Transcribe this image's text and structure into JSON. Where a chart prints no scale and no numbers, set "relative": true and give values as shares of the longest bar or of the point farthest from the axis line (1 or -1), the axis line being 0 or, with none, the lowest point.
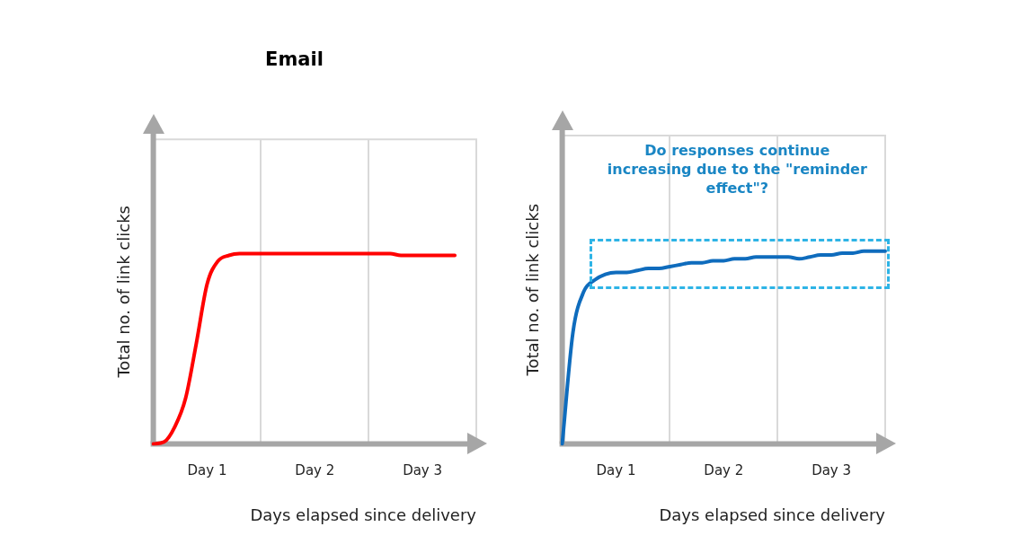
{
  "chart_data": [
    {
      "type": "line",
      "title": "Email",
      "xlabel": "Days elapsed since delivery",
      "ylabel": "Total no. of link clicks",
      "relative": true,
      "grid": "x",
      "legend": false,
      "categories": [
        null,
        null,
        null,
        null,
        null,
        "Day 1",
        null,
        null,
        null,
        null,
        null,
        null,
        null,
        null,
        null,
        "Day 2",
        null,
        null,
        null,
        null,
        null,
        null,
        null,
        null,
        null,
        "Day 3",
        null,
        null,
        null,
        null,
        null
      ],
      "series": [
        {
          "color": "#ff0000",
          "values": [
            0,
            0.01,
            0.09,
            0.24,
            0.53,
            0.84,
            0.96,
            0.99,
            1,
            1,
            1,
            1,
            1,
            1,
            1,
            1,
            1,
            1,
            1,
            1,
            1,
            1,
            1,
            0.99,
            0.99,
            0.99,
            0.99,
            0.99,
            0.99,
            null,
            null
          ]
        }
      ]
    },
    {
      "type": "line",
      "xlabel": "Days elapsed since delivery",
      "ylabel": "Total no. of link clicks",
      "relative": true,
      "grid": "x",
      "legend": false,
      "annotations": [
        "Do responses continue increasing due to the \"reminder effect\"?"
      ],
      "categories": [
        null,
        null,
        null,
        null,
        null,
        "Day 1",
        null,
        null,
        null,
        null,
        null,
        null,
        null,
        null,
        null,
        "Day 2",
        null,
        null,
        null,
        null,
        null,
        null,
        null,
        null,
        null,
        "Day 3",
        null,
        null,
        null,
        null,
        null
      ],
      "series": [
        {
          "color": "#0f6cbd",
          "values": [
            0,
            0.58,
            0.79,
            0.85,
            0.88,
            0.89,
            0.89,
            0.9,
            0.91,
            0.91,
            0.92,
            0.93,
            0.94,
            0.94,
            0.95,
            0.95,
            0.96,
            0.96,
            0.97,
            0.97,
            0.97,
            0.97,
            0.96,
            0.97,
            0.98,
            0.98,
            0.99,
            0.99,
            1,
            1,
            1
          ]
        }
      ]
    }
  ]
}
